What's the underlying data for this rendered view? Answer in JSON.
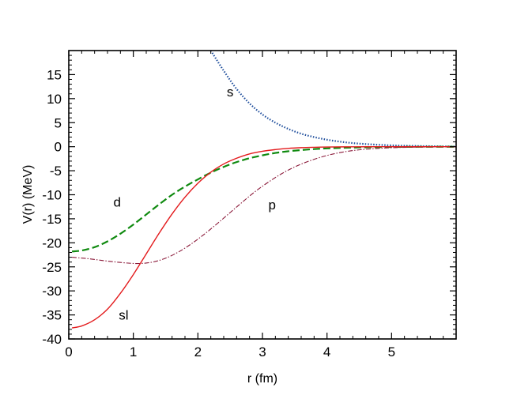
{
  "chart_data": {
    "type": "line",
    "title": "",
    "xlabel": "r (fm)",
    "ylabel": "V(r)  (MeV)",
    "xlim": [
      0,
      6.0
    ],
    "ylim": [
      -40,
      20
    ],
    "x_ticks": [
      0,
      1,
      2,
      3,
      4,
      5
    ],
    "x_tick_labels": [
      "0",
      "1",
      "2",
      "3",
      "4",
      "5"
    ],
    "y_ticks": [
      15,
      10,
      5,
      0,
      -5,
      -10,
      -15,
      -20,
      -25,
      -30,
      -35,
      -40
    ],
    "y_tick_labels": [
      "15",
      "10",
      "5",
      "0",
      "-5",
      "-10",
      "-15",
      "-20",
      "-25",
      "-30",
      "-35",
      "-40"
    ],
    "grid": false,
    "legend": "none",
    "series": [
      {
        "name": "s",
        "color": "#1f4e9c",
        "dash": "dotted",
        "x": [
          2.2,
          2.4,
          2.6,
          2.8,
          3.0,
          3.2,
          3.4,
          3.6,
          3.8,
          4.0,
          4.2,
          4.4,
          4.6,
          4.8,
          5.0,
          5.2,
          5.5,
          5.8,
          6.0
        ],
        "values": [
          20.0,
          15.8,
          12.0,
          9.0,
          6.7,
          5.0,
          3.7,
          2.7,
          2.0,
          1.45,
          1.05,
          0.75,
          0.55,
          0.4,
          0.28,
          0.2,
          0.12,
          0.06,
          0.03
        ]
      },
      {
        "name": "d",
        "color": "#0f8a0f",
        "dash": "dashed",
        "x": [
          0.05,
          0.2,
          0.4,
          0.6,
          0.8,
          1.0,
          1.2,
          1.4,
          1.6,
          1.8,
          2.0,
          2.2,
          2.4,
          2.6,
          2.8,
          3.0,
          3.2,
          3.4,
          3.6,
          3.8,
          4.0,
          4.4,
          4.8,
          5.2,
          5.6,
          6.0
        ],
        "values": [
          -21.8,
          -21.6,
          -20.9,
          -19.7,
          -18.1,
          -16.2,
          -14.1,
          -12.0,
          -10.0,
          -8.3,
          -6.8,
          -5.4,
          -4.2,
          -3.2,
          -2.4,
          -1.8,
          -1.3,
          -0.95,
          -0.7,
          -0.5,
          -0.35,
          -0.18,
          -0.09,
          -0.04,
          -0.02,
          -0.01
        ]
      },
      {
        "name": "p",
        "color": "#8b1a3a",
        "dash": "dashdot",
        "x": [
          0.05,
          0.3,
          0.6,
          0.9,
          1.1,
          1.3,
          1.5,
          1.7,
          1.9,
          2.1,
          2.3,
          2.5,
          2.7,
          2.9,
          3.1,
          3.3,
          3.5,
          3.7,
          3.9,
          4.1,
          4.3,
          4.5,
          4.8,
          5.1,
          5.5,
          6.0
        ],
        "values": [
          -23.0,
          -23.3,
          -23.8,
          -24.2,
          -24.3,
          -24.0,
          -23.2,
          -21.9,
          -20.2,
          -18.2,
          -16.0,
          -13.7,
          -11.4,
          -9.2,
          -7.3,
          -5.6,
          -4.2,
          -3.1,
          -2.2,
          -1.5,
          -1.0,
          -0.65,
          -0.35,
          -0.17,
          -0.07,
          -0.02
        ]
      },
      {
        "name": "sl",
        "color": "#e31a1c",
        "dash": "solid",
        "x": [
          0.05,
          0.2,
          0.4,
          0.6,
          0.8,
          1.0,
          1.2,
          1.4,
          1.6,
          1.8,
          2.0,
          2.2,
          2.4,
          2.6,
          2.8,
          3.0,
          3.2,
          3.4,
          3.6,
          3.8,
          4.0,
          4.4,
          4.8,
          5.2,
          6.0
        ],
        "values": [
          -37.7,
          -37.3,
          -36.0,
          -33.8,
          -30.5,
          -26.6,
          -22.3,
          -18.0,
          -14.0,
          -10.5,
          -7.6,
          -5.3,
          -3.6,
          -2.4,
          -1.5,
          -0.95,
          -0.6,
          -0.35,
          -0.2,
          -0.12,
          -0.07,
          -0.02,
          -0.01,
          0.0,
          0.0
        ]
      }
    ],
    "annotations": [
      {
        "text": "s",
        "x": 2.5,
        "y": 10.5
      },
      {
        "text": "d",
        "x": 0.75,
        "y": -12.5
      },
      {
        "text": "p",
        "x": 3.15,
        "y": -13.0
      },
      {
        "text": "sl",
        "x": 0.85,
        "y": -36.0
      }
    ]
  }
}
